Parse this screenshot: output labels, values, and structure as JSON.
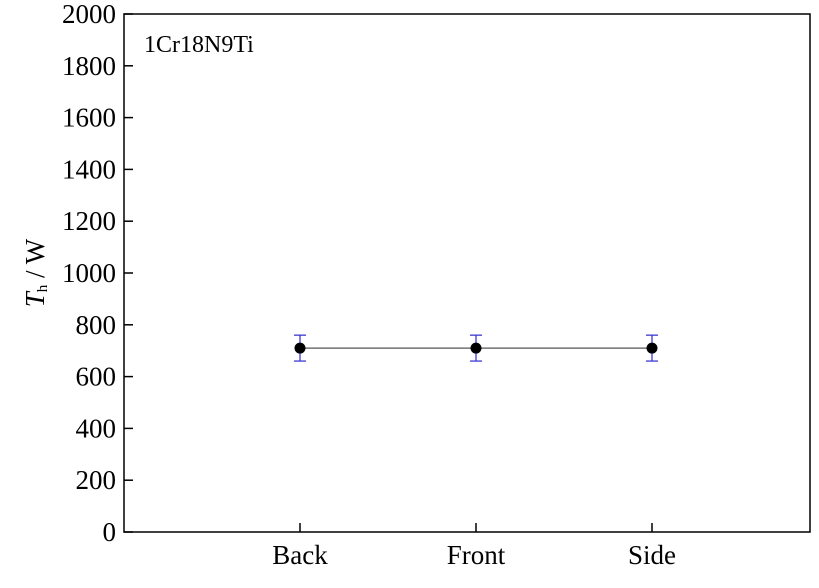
{
  "chart_data": {
    "type": "line",
    "annotation": "1Cr18N9Ti",
    "ylabel_symbol": "T",
    "ylabel_subscript": "h",
    "ylabel_unit": " / W",
    "categories": [
      "Back",
      "Front",
      "Side"
    ],
    "series": [
      {
        "values": [
          710,
          710,
          710
        ],
        "errors": [
          50,
          50,
          50
        ],
        "color": "#000000",
        "line_color": "#555555",
        "error_color": "#3b3bd6"
      }
    ],
    "ylim": [
      0,
      2000
    ],
    "yticks": [
      0,
      200,
      400,
      600,
      800,
      1000,
      1200,
      1400,
      1600,
      1800,
      2000
    ]
  }
}
